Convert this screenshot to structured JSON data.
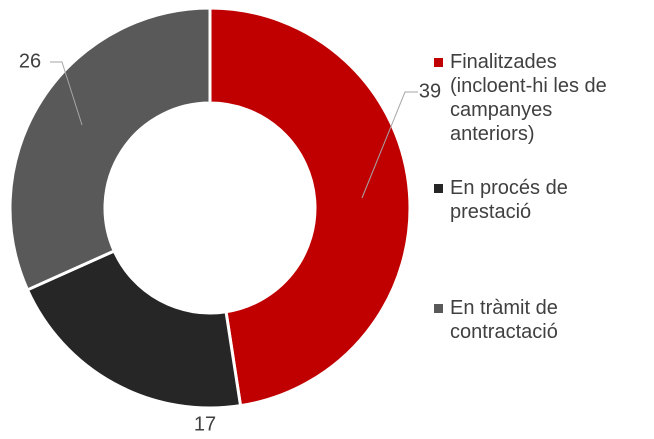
{
  "chart_data": {
    "type": "donut",
    "categories": [
      "Finalitzades (incloent-hi les de campanyes anteriors)",
      "En procés de prestació",
      "En tràmit de contractació"
    ],
    "values": [
      39,
      17,
      26
    ],
    "colors": [
      "#c00000",
      "#262626",
      "#595959"
    ],
    "legend": "right"
  }
}
